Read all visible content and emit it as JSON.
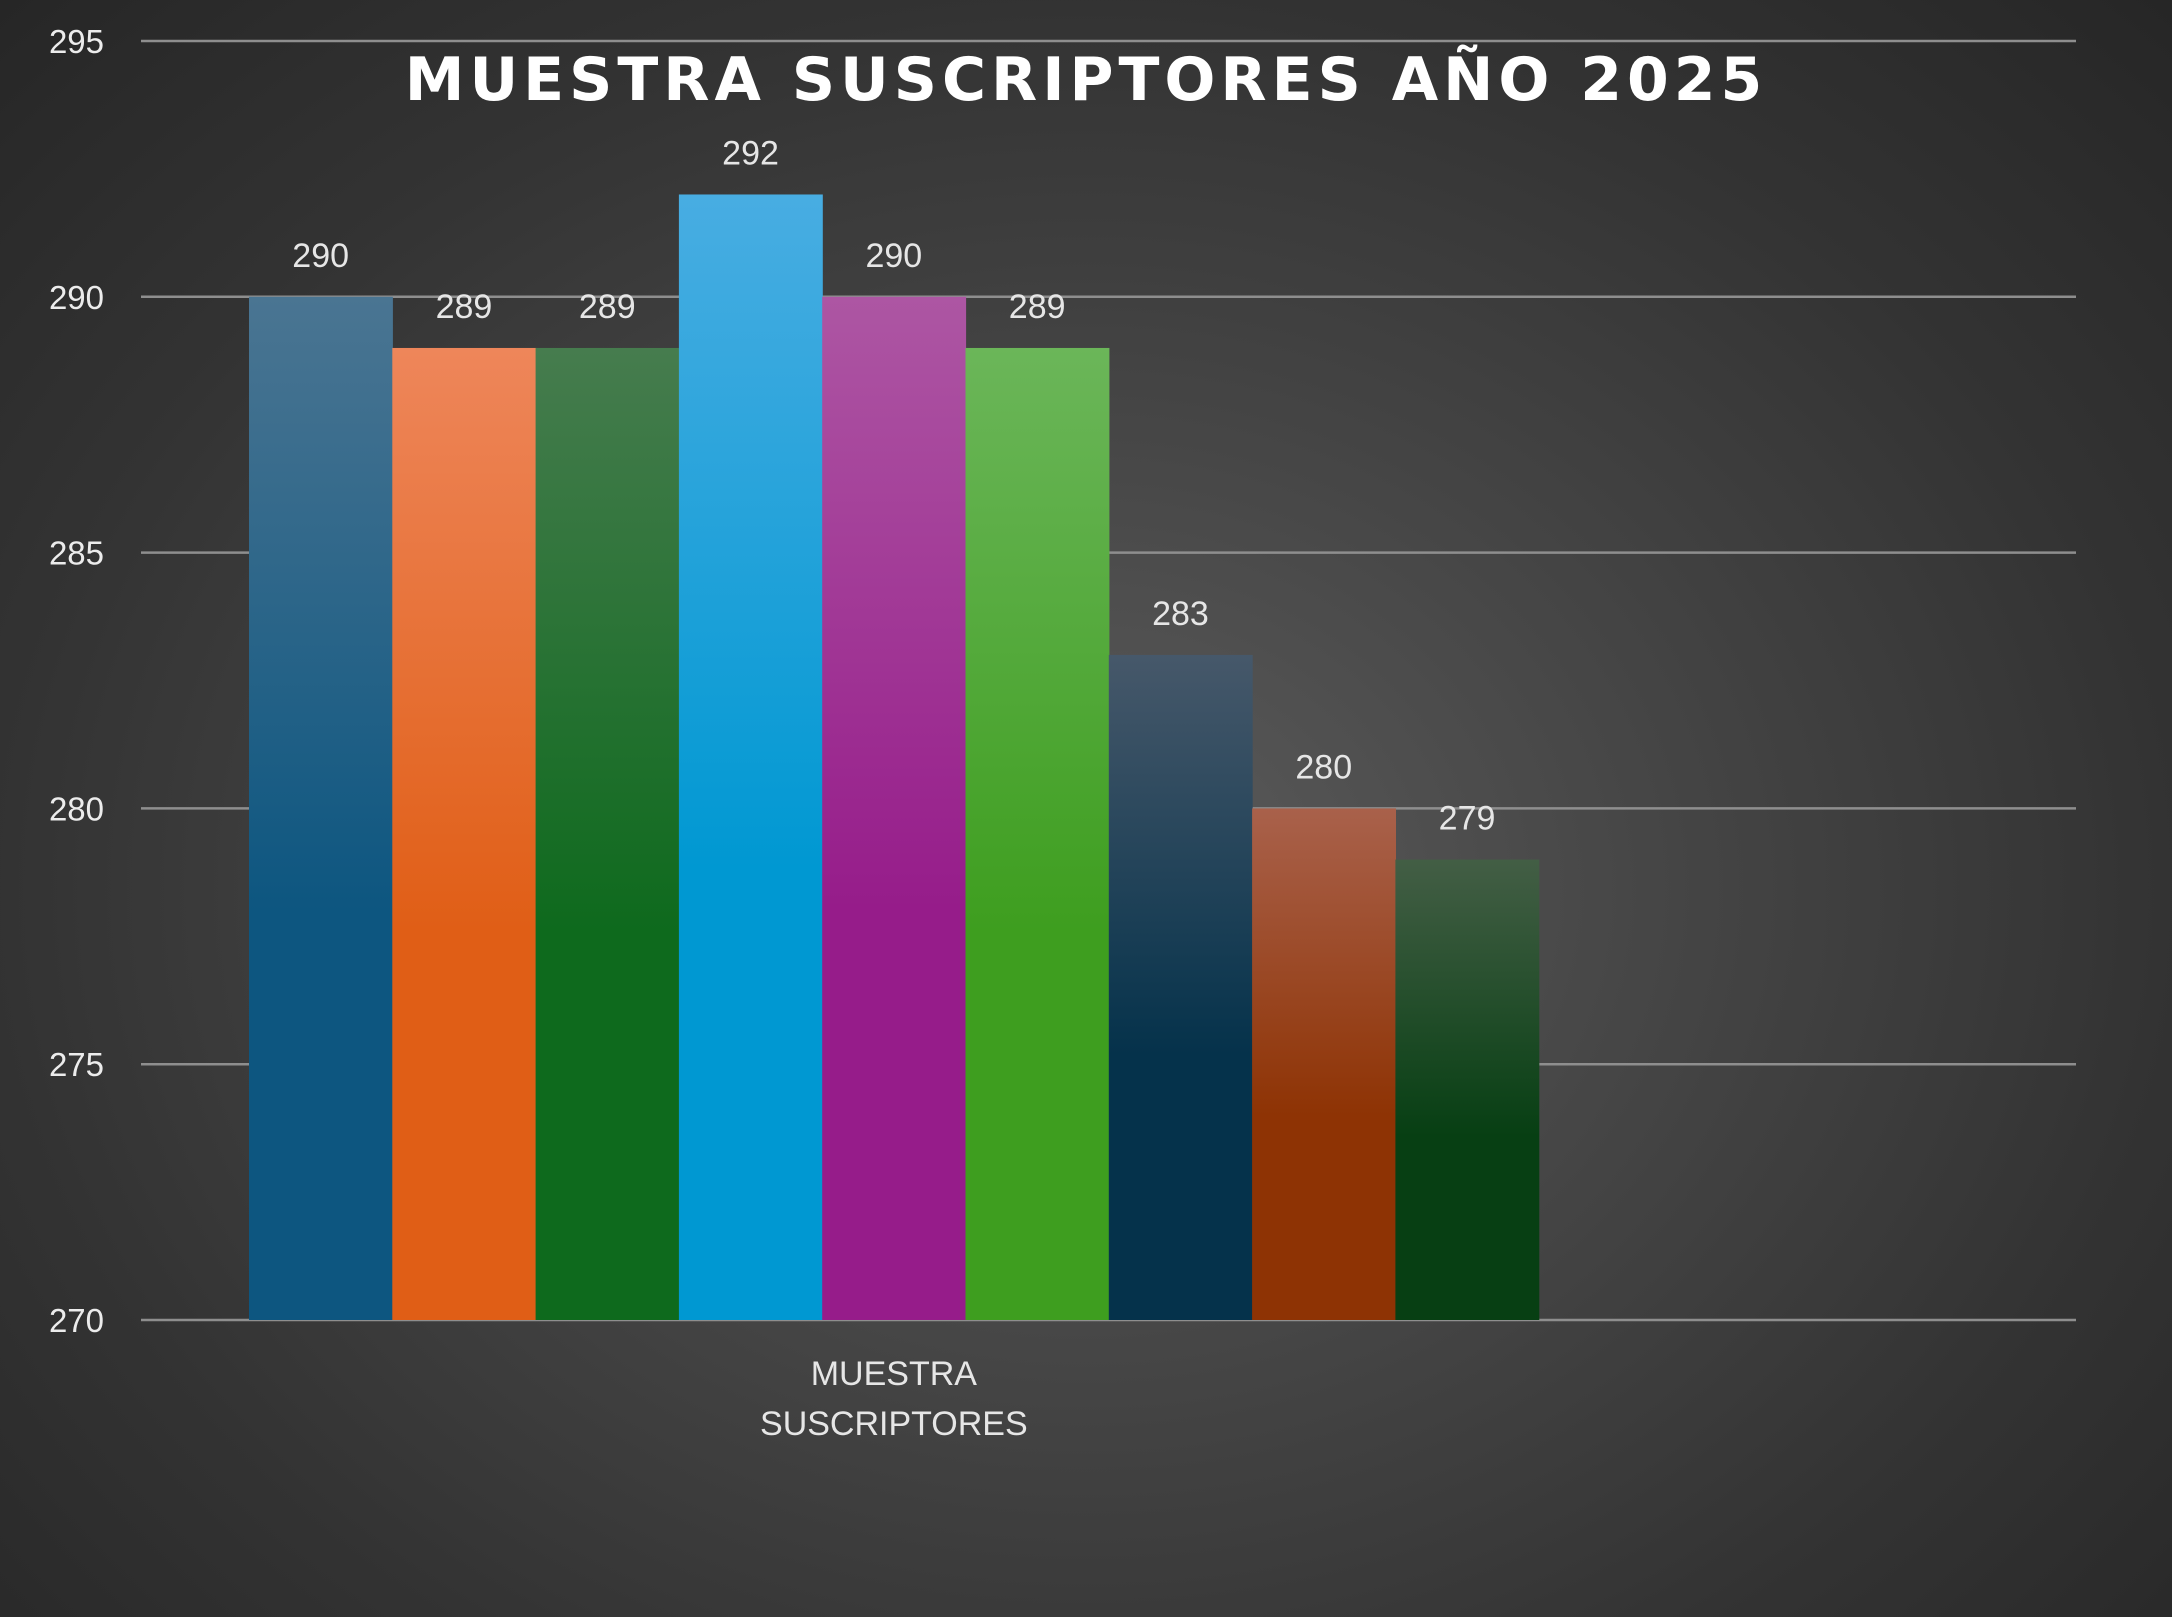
{
  "chart_data": {
    "type": "bar",
    "title": "MUESTRA SUSCRIPTORES AÑO 2025",
    "categories": [
      "MUESTRA SUSCRIPTORES"
    ],
    "category_label_lines": [
      "MUESTRA",
      "SUSCRIPTORES"
    ],
    "xlabel": "",
    "ylabel": "",
    "ylim": [
      270,
      295
    ],
    "y_ticks": [
      270,
      275,
      280,
      285,
      290,
      295
    ],
    "grid": true,
    "legend": "none",
    "data_labels": true,
    "series": [
      {
        "values": [
          290
        ],
        "color_top": "#4a7592",
        "color_bottom": "#0d5680"
      },
      {
        "values": [
          289
        ],
        "color_top": "#ee865a",
        "color_bottom": "#e05e16"
      },
      {
        "values": [
          289
        ],
        "color_top": "#467c4e",
        "color_bottom": "#0e6a1d"
      },
      {
        "values": [
          292
        ],
        "color_top": "#48ade2",
        "color_bottom": "#0098d2"
      },
      {
        "values": [
          290
        ],
        "color_top": "#ad56a3",
        "color_bottom": "#961c8a"
      },
      {
        "values": [
          289
        ],
        "color_top": "#6bb659",
        "color_bottom": "#3e9e1f"
      },
      {
        "values": [
          283
        ],
        "color_top": "#46586a",
        "color_bottom": "#05324b"
      },
      {
        "values": [
          280
        ],
        "color_top": "#a9614b",
        "color_bottom": "#8e3304"
      },
      {
        "values": [
          279
        ],
        "color_top": "#435e45",
        "color_bottom": "#073f13"
      }
    ]
  }
}
